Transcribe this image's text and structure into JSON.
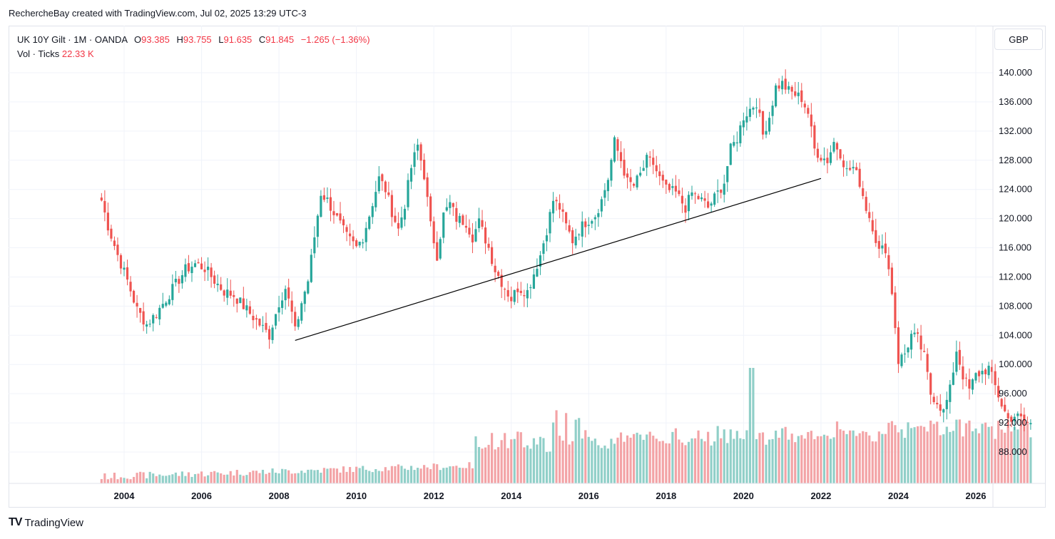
{
  "header": {
    "attribution": "RechercheBay created with TradingView.com, Jul 02, 2025 13:29 UTC-3"
  },
  "legend": {
    "symbol": "UK 10Y Gilt · 1M · OANDA",
    "o_label": "O",
    "o_value": "93.385",
    "h_label": "H",
    "h_value": "93.755",
    "l_label": "L",
    "l_value": "91.635",
    "c_label": "C",
    "c_value": "91.845",
    "change": "−1.265 (−1.36%)",
    "vol_label": "Vol · Ticks",
    "vol_value": "22.33 K"
  },
  "currency": "GBP",
  "footer": {
    "logo": "TV",
    "brand": "TradingView"
  },
  "colors": {
    "up": "#26a69a",
    "down": "#ef5350",
    "up_vol": "#90cfc8",
    "down_vol": "#f3a3a6",
    "grid": "#f0f3fa",
    "trendline": "#000000"
  },
  "chart_data": {
    "type": "candlestick",
    "title": "UK 10Y Gilt · 1M · OANDA",
    "ylim": [
      84.5,
      141.5
    ],
    "y_ticks": [
      "88.000",
      "92.000",
      "96.000",
      "100.000",
      "104.000",
      "108.000",
      "112.000",
      "116.000",
      "120.000",
      "124.000",
      "128.000",
      "132.000",
      "136.000",
      "140.000"
    ],
    "x_ticks": [
      "2004",
      "2006",
      "2008",
      "2010",
      "2012",
      "2014",
      "2016",
      "2018",
      "2020",
      "2022",
      "2024",
      "2026"
    ],
    "y_axis_position": "right",
    "grid": true,
    "trendline": {
      "start": [
        "2008-06",
        103.3
      ],
      "end": [
        "2022-01",
        125.5
      ]
    },
    "ohlc_monthly_approx": {
      "start_month": "2003-06",
      "close_path": [
        [
          0,
          122.5
        ],
        [
          2,
          119.0
        ],
        [
          5,
          115.0
        ],
        [
          8,
          111.5
        ],
        [
          11,
          107.5
        ],
        [
          14,
          105.5
        ],
        [
          17,
          107.0
        ],
        [
          20,
          109.0
        ],
        [
          23,
          111.0
        ],
        [
          26,
          113.0
        ],
        [
          29,
          113.8
        ],
        [
          32,
          113.2
        ],
        [
          35,
          111.5
        ],
        [
          38,
          110.0
        ],
        [
          41,
          109.5
        ],
        [
          44,
          108.0
        ],
        [
          47,
          106.5
        ],
        [
          50,
          105.0
        ],
        [
          52,
          104.0
        ],
        [
          55,
          108.5
        ],
        [
          57,
          110.5
        ],
        [
          59,
          107.0
        ],
        [
          60,
          104.5
        ],
        [
          62,
          108.5
        ],
        [
          64,
          111.5
        ],
        [
          66,
          117.5
        ],
        [
          68,
          123.5
        ],
        [
          70,
          122.5
        ],
        [
          73,
          120.0
        ],
        [
          76,
          117.5
        ],
        [
          79,
          116.0
        ],
        [
          81,
          117.5
        ],
        [
          83,
          120.5
        ],
        [
          86,
          125.5
        ],
        [
          88,
          124.0
        ],
        [
          90,
          121.0
        ],
        [
          92,
          118.5
        ],
        [
          94,
          122.0
        ],
        [
          96,
          127.0
        ],
        [
          98,
          130.0
        ],
        [
          100,
          126.0
        ],
        [
          102,
          119.0
        ],
        [
          104,
          115.0
        ],
        [
          106,
          120.5
        ],
        [
          108,
          122.0
        ],
        [
          110,
          120.0
        ],
        [
          113,
          119.5
        ],
        [
          115,
          117.5
        ],
        [
          117,
          119.5
        ],
        [
          120,
          116.0
        ],
        [
          122,
          113.0
        ],
        [
          125,
          110.5
        ],
        [
          127,
          109.0
        ],
        [
          129,
          110.5
        ],
        [
          132,
          110.0
        ],
        [
          134,
          112.5
        ],
        [
          136,
          115.0
        ],
        [
          138,
          118.5
        ],
        [
          140,
          122.5
        ],
        [
          142,
          121.5
        ],
        [
          144,
          119.0
        ],
        [
          146,
          117.0
        ],
        [
          148,
          118.5
        ],
        [
          150,
          119.5
        ],
        [
          153,
          120.5
        ],
        [
          155,
          122.5
        ],
        [
          157,
          125.5
        ],
        [
          159,
          130.5
        ],
        [
          161,
          128.0
        ],
        [
          163,
          125.0
        ],
        [
          165,
          124.5
        ],
        [
          167,
          126.0
        ],
        [
          169,
          128.0
        ],
        [
          171,
          127.5
        ],
        [
          173,
          125.5
        ],
        [
          175,
          124.0
        ],
        [
          178,
          123.5
        ],
        [
          181,
          121.5
        ],
        [
          183,
          123.5
        ],
        [
          186,
          122.5
        ],
        [
          188,
          121.5
        ],
        [
          191,
          123.5
        ],
        [
          193,
          125.0
        ],
        [
          195,
          129.5
        ],
        [
          197,
          131.0
        ],
        [
          199,
          134.0
        ],
        [
          201,
          135.0
        ],
        [
          203,
          136.0
        ],
        [
          205,
          131.5
        ],
        [
          207,
          134.0
        ],
        [
          209,
          138.0
        ],
        [
          211,
          138.5
        ],
        [
          213,
          137.5
        ],
        [
          215,
          137.0
        ],
        [
          217,
          136.5
        ],
        [
          219,
          134.5
        ],
        [
          221,
          129.5
        ],
        [
          223,
          128.5
        ],
        [
          225,
          128.0
        ],
        [
          227,
          130.5
        ],
        [
          229,
          129.0
        ],
        [
          231,
          126.5
        ],
        [
          233,
          127.0
        ],
        [
          235,
          125.0
        ],
        [
          237,
          121.5
        ],
        [
          239,
          119.0
        ],
        [
          241,
          115.5
        ],
        [
          243,
          116.0
        ],
        [
          245,
          110.0
        ],
        [
          247,
          100.5
        ],
        [
          249,
          101.5
        ],
        [
          251,
          104.0
        ],
        [
          253,
          103.5
        ],
        [
          255,
          101.0
        ],
        [
          257,
          96.0
        ],
        [
          259,
          95.0
        ],
        [
          261,
          93.5
        ],
        [
          263,
          96.5
        ],
        [
          265,
          102.0
        ],
        [
          267,
          98.5
        ],
        [
          269,
          96.5
        ],
        [
          271,
          98.5
        ],
        [
          273,
          99.0
        ],
        [
          275,
          99.5
        ],
        [
          277,
          97.0
        ],
        [
          279,
          94.5
        ],
        [
          281,
          92.5
        ],
        [
          283,
          93.0
        ],
        [
          285,
          92.5
        ],
        [
          288,
          91.8
        ]
      ]
    },
    "volume_label": "Vol · Ticks",
    "volume_last": "22.33 K"
  }
}
